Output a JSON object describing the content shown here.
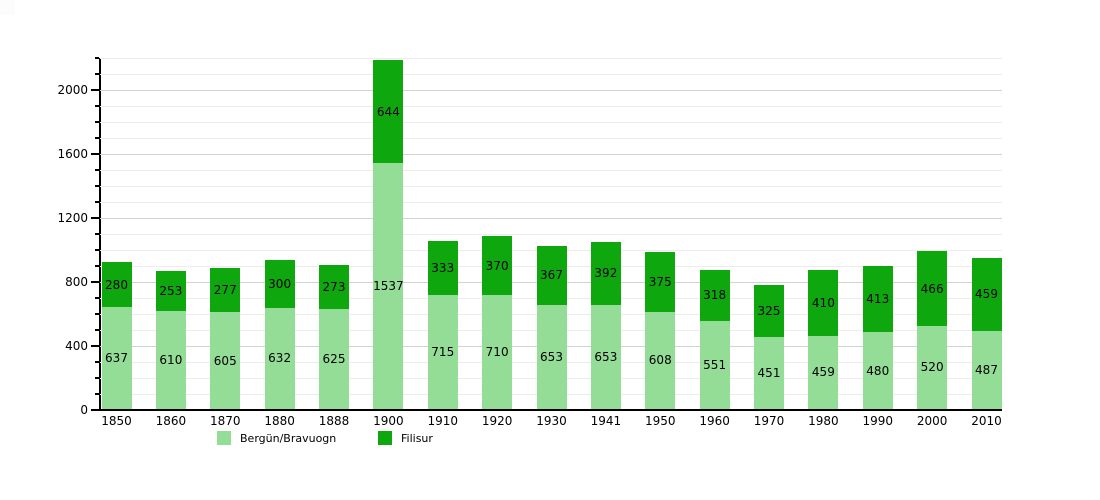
{
  "page": {
    "background_color": "#ffffff",
    "corner_artifact_color": "#fcfcfc"
  },
  "chart_data": {
    "type": "bar",
    "stacked": true,
    "title": "",
    "xlabel": "",
    "ylabel": "",
    "categories": [
      "1850",
      "1860",
      "1870",
      "1880",
      "1888",
      "1900",
      "1910",
      "1920",
      "1930",
      "1941",
      "1950",
      "1960",
      "1970",
      "1980",
      "1990",
      "2000",
      "2010"
    ],
    "series": [
      {
        "name": "Bergün/Bravuogn",
        "color": "#93DD97",
        "values": [
          637,
          610,
          605,
          632,
          625,
          1537,
          715,
          710,
          653,
          653,
          608,
          551,
          451,
          459,
          480,
          520,
          487
        ]
      },
      {
        "name": "Filisur",
        "color": "#0EA80E",
        "values": [
          280,
          253,
          277,
          300,
          273,
          644,
          333,
          370,
          367,
          392,
          375,
          318,
          325,
          410,
          413,
          466,
          459
        ]
      }
    ],
    "bar_value_labels_shown": true,
    "bar_label_color": "#000000",
    "y_ticks": [
      0,
      400,
      800,
      1200,
      1600,
      2000
    ],
    "ylim": [
      0,
      2200
    ],
    "grid": {
      "shown": true,
      "minor_step": 100,
      "major_step": 400,
      "minor_color": "#ececec",
      "major_color": "#d2d2d2"
    },
    "axis_color": "#000000",
    "legend_position": "bottom"
  }
}
